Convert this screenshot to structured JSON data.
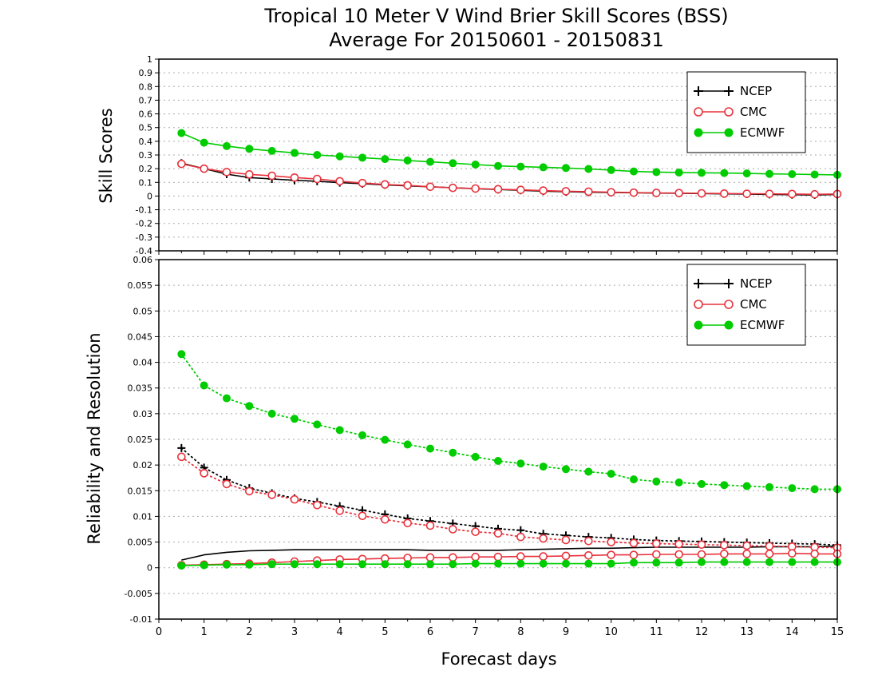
{
  "title": {
    "line1": "Tropical 10 Meter V Wind Brier Skill Scores (BSS)",
    "line2": "Average For 20150601 - 20150831"
  },
  "colors": {
    "NCEP": "#000000",
    "CMC": "#e8323c",
    "ECMWF": "#00cc00"
  },
  "chart_data": [
    {
      "type": "line",
      "name": "top",
      "ylabel": "Skill Scores",
      "xlabel": "",
      "xlim": [
        0,
        15
      ],
      "ylim": [
        -0.4,
        1
      ],
      "yticks": [
        -0.4,
        -0.3,
        -0.2,
        -0.1,
        0,
        0.1,
        0.2,
        0.3,
        0.4,
        0.5,
        0.6,
        0.7,
        0.8,
        0.9,
        1
      ],
      "yticklabels": [
        "-0.4",
        "-0.3",
        "-0.2",
        "-0.1",
        "0",
        "0.1",
        "0.2",
        "0.3",
        "0.4",
        "0.5",
        "0.6",
        "0.7",
        "0.8",
        "0.9",
        "1"
      ],
      "grid": true,
      "legend": [
        "NCEP",
        "CMC",
        "ECMWF"
      ],
      "legend_position": "top-right",
      "x": [
        0.5,
        1,
        1.5,
        2,
        2.5,
        3,
        3.5,
        4,
        4.5,
        5,
        5.5,
        6,
        6.5,
        7,
        7.5,
        8,
        8.5,
        9,
        9.5,
        10,
        10.5,
        11,
        11.5,
        12,
        12.5,
        13,
        13.5,
        14,
        14.5,
        15
      ],
      "series": [
        {
          "name": "NCEP",
          "style": "solid",
          "marker": "plus",
          "values": [
            0.24,
            0.2,
            0.16,
            0.135,
            0.125,
            0.115,
            0.108,
            0.098,
            0.09,
            0.082,
            0.074,
            0.068,
            0.06,
            0.054,
            0.048,
            0.042,
            0.036,
            0.032,
            0.028,
            0.026,
            0.024,
            0.022,
            0.02,
            0.018,
            0.016,
            0.014,
            0.012,
            0.01,
            0.008,
            0.012
          ]
        },
        {
          "name": "CMC",
          "style": "solid",
          "marker": "circle-open",
          "values": [
            0.235,
            0.2,
            0.175,
            0.158,
            0.148,
            0.135,
            0.125,
            0.108,
            0.095,
            0.085,
            0.078,
            0.068,
            0.06,
            0.055,
            0.05,
            0.045,
            0.04,
            0.035,
            0.032,
            0.028,
            0.025,
            0.023,
            0.022,
            0.02,
            0.018,
            0.017,
            0.016,
            0.015,
            0.013,
            0.015
          ]
        },
        {
          "name": "ECMWF",
          "style": "solid",
          "marker": "circle-filled",
          "values": [
            0.46,
            0.39,
            0.365,
            0.345,
            0.33,
            0.315,
            0.3,
            0.29,
            0.28,
            0.27,
            0.26,
            0.25,
            0.24,
            0.23,
            0.22,
            0.215,
            0.21,
            0.205,
            0.198,
            0.19,
            0.18,
            0.175,
            0.172,
            0.17,
            0.168,
            0.165,
            0.162,
            0.16,
            0.157,
            0.155
          ]
        }
      ]
    },
    {
      "type": "line",
      "name": "bottom",
      "ylabel": "Reliability and Resolution",
      "xlabel": "Forecast days",
      "xlim": [
        0,
        15
      ],
      "ylim": [
        -0.01,
        0.06
      ],
      "yticks": [
        -0.01,
        -0.005,
        0,
        0.005,
        0.01,
        0.015,
        0.02,
        0.025,
        0.03,
        0.035,
        0.04,
        0.045,
        0.05,
        0.055,
        0.06
      ],
      "yticklabels": [
        "-0.01",
        "-0.005",
        "0",
        "0.005",
        "0.01",
        "0.015",
        "0.02",
        "0.025",
        "0.03",
        "0.035",
        "0.04",
        "0.045",
        "0.05",
        "0.055",
        "0.06"
      ],
      "xticks": [
        0,
        1,
        2,
        3,
        4,
        5,
        6,
        7,
        8,
        9,
        10,
        11,
        12,
        13,
        14,
        15
      ],
      "xticklabels": [
        "0",
        "1",
        "2",
        "3",
        "4",
        "5",
        "6",
        "7",
        "8",
        "9",
        "10",
        "11",
        "12",
        "13",
        "14",
        "15"
      ],
      "grid": true,
      "legend": [
        "NCEP",
        "CMC",
        "ECMWF"
      ],
      "legend_position": "top-right",
      "x": [
        0.5,
        1,
        1.5,
        2,
        2.5,
        3,
        3.5,
        4,
        4.5,
        5,
        5.5,
        6,
        6.5,
        7,
        7.5,
        8,
        8.5,
        9,
        9.5,
        10,
        10.5,
        11,
        11.5,
        12,
        12.5,
        13,
        13.5,
        14,
        14.5,
        15
      ],
      "series": [
        {
          "name": "NCEP",
          "legend_group": "NCEP",
          "style": "dotted",
          "marker": "plus",
          "values": [
            0.0233,
            0.0195,
            0.0171,
            0.0155,
            0.0145,
            0.0135,
            0.0128,
            0.012,
            0.0112,
            0.0104,
            0.0096,
            0.0091,
            0.0086,
            0.0081,
            0.0076,
            0.0073,
            0.0066,
            0.0063,
            0.006,
            0.0058,
            0.0055,
            0.0053,
            0.0052,
            0.0051,
            0.005,
            0.0049,
            0.0048,
            0.0047,
            0.0046,
            0.0044
          ]
        },
        {
          "name": "NCEP",
          "legend_group": "NCEP",
          "style": "solid",
          "marker": "none",
          "values": [
            0.0015,
            0.0025,
            0.003,
            0.0033,
            0.0034,
            0.0035,
            0.0035,
            0.0035,
            0.0035,
            0.0035,
            0.0035,
            0.0034,
            0.0034,
            0.0034,
            0.0034,
            0.0035,
            0.0036,
            0.0037,
            0.0038,
            0.0038,
            0.0039,
            0.004,
            0.004,
            0.004,
            0.004,
            0.004,
            0.0041,
            0.0041,
            0.0041,
            0.0042
          ]
        },
        {
          "name": "CMC",
          "legend_group": "CMC",
          "style": "dotted",
          "marker": "circle-open",
          "values": [
            0.0216,
            0.0184,
            0.0163,
            0.0149,
            0.0142,
            0.0133,
            0.0122,
            0.0111,
            0.0101,
            0.0094,
            0.0087,
            0.0082,
            0.0075,
            0.007,
            0.0067,
            0.006,
            0.0057,
            0.0054,
            0.0052,
            0.005,
            0.0048,
            0.0047,
            0.0046,
            0.0045,
            0.0044,
            0.0043,
            0.0042,
            0.0041,
            0.004,
            0.0039
          ]
        },
        {
          "name": "CMC",
          "legend_group": "CMC",
          "style": "solid",
          "marker": "circle-open",
          "values": [
            0.0005,
            0.0006,
            0.0007,
            0.0008,
            0.001,
            0.0012,
            0.0014,
            0.0016,
            0.0017,
            0.0018,
            0.0019,
            0.002,
            0.002,
            0.0021,
            0.0021,
            0.0022,
            0.0022,
            0.0023,
            0.0024,
            0.0025,
            0.0025,
            0.0026,
            0.0026,
            0.0026,
            0.0027,
            0.0027,
            0.0027,
            0.0028,
            0.0027,
            0.0027
          ]
        },
        {
          "name": "ECMWF",
          "legend_group": "ECMWF",
          "style": "dotted",
          "marker": "circle-filled",
          "values": [
            0.0416,
            0.0355,
            0.033,
            0.0315,
            0.03,
            0.029,
            0.0279,
            0.0268,
            0.0258,
            0.0249,
            0.024,
            0.0232,
            0.0224,
            0.0216,
            0.0208,
            0.0203,
            0.0197,
            0.0192,
            0.0187,
            0.0183,
            0.0172,
            0.0168,
            0.0166,
            0.0163,
            0.0161,
            0.0159,
            0.0157,
            0.0155,
            0.0153,
            0.0153
          ]
        },
        {
          "name": "ECMWF",
          "legend_group": "ECMWF",
          "style": "solid",
          "marker": "circle-filled",
          "values": [
            0.0004,
            0.0005,
            0.0006,
            0.0006,
            0.0007,
            0.0007,
            0.0007,
            0.0007,
            0.0007,
            0.0007,
            0.0007,
            0.0007,
            0.0007,
            0.0008,
            0.0008,
            0.0008,
            0.0008,
            0.0008,
            0.0008,
            0.0008,
            0.001,
            0.001,
            0.001,
            0.0011,
            0.0011,
            0.0011,
            0.0011,
            0.0011,
            0.0011,
            0.0011
          ]
        }
      ]
    }
  ]
}
